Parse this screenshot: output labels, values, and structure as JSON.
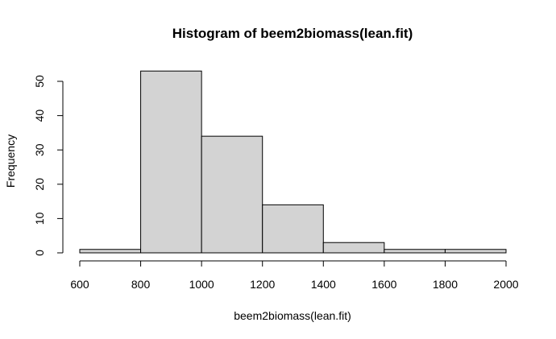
{
  "chart_data": {
    "type": "bar",
    "title": "Histogram of beem2biomass(lean.fit)",
    "xlabel": "beem2biomass(lean.fit)",
    "ylabel": "Frequency",
    "bins": [
      {
        "from": 600,
        "to": 800,
        "count": 1
      },
      {
        "from": 800,
        "to": 1000,
        "count": 53
      },
      {
        "from": 1000,
        "to": 1200,
        "count": 34
      },
      {
        "from": 1200,
        "to": 1400,
        "count": 14
      },
      {
        "from": 1400,
        "to": 1600,
        "count": 3
      },
      {
        "from": 1600,
        "to": 1800,
        "count": 1
      },
      {
        "from": 1800,
        "to": 2000,
        "count": 1
      }
    ],
    "xlim": [
      600,
      2000
    ],
    "ylim": [
      0,
      53
    ],
    "x_ticks": [
      600,
      800,
      1000,
      1200,
      1400,
      1600,
      1800,
      2000
    ],
    "y_ticks": [
      0,
      10,
      20,
      30,
      40,
      50
    ],
    "bar_color": "#d3d3d3",
    "edge_color": "#000000",
    "grid": false
  }
}
